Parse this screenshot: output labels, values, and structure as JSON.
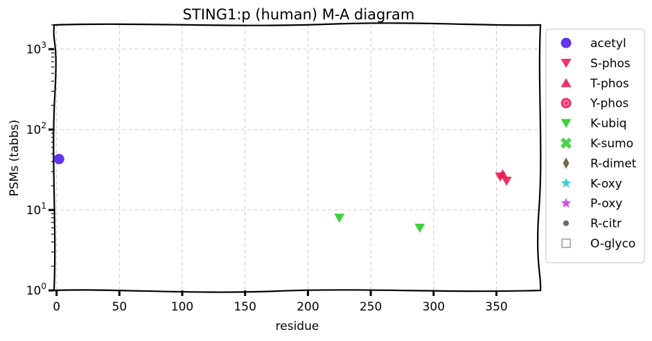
{
  "chart_data": {
    "type": "scatter",
    "title": "STING1:p (human) M-A diagram",
    "xlabel": "residue",
    "ylabel": "PSMs (tabbs)",
    "xlim": [
      -2,
      385
    ],
    "ylim": [
      1,
      2000
    ],
    "yscale": "log",
    "grid": true,
    "legend_position": "right-outside",
    "x_ticks": [
      0,
      50,
      100,
      150,
      200,
      250,
      300,
      350
    ],
    "y_ticks": [
      {
        "value": 1,
        "base": "10",
        "exp": "0"
      },
      {
        "value": 10,
        "base": "10",
        "exp": "1"
      },
      {
        "value": 100,
        "base": "10",
        "exp": "2"
      },
      {
        "value": 1000,
        "base": "10",
        "exp": "3"
      }
    ],
    "series": [
      {
        "name": "acetyl",
        "marker": "circle",
        "color": "#4a1bea",
        "points": [
          [
            2,
            43
          ]
        ]
      },
      {
        "name": "S-phos",
        "marker": "triangle-down",
        "color": "#f0154f",
        "points": [
          [
            353,
            26
          ],
          [
            358,
            23
          ]
        ]
      },
      {
        "name": "T-phos",
        "marker": "triangle-up",
        "color": "#f0154f",
        "points": [
          [
            355,
            28
          ]
        ]
      },
      {
        "name": "Y-phos",
        "marker": "circle-ring",
        "color": "#f0154f",
        "points": []
      },
      {
        "name": "K-ubiq",
        "marker": "triangle-down",
        "color": "#22cc22",
        "points": [
          [
            225,
            8
          ],
          [
            289,
            6
          ]
        ]
      },
      {
        "name": "K-sumo",
        "marker": "x",
        "color": "#33cc33",
        "points": []
      },
      {
        "name": "R-dimet",
        "marker": "diamond",
        "color": "#5e5420",
        "points": []
      },
      {
        "name": "K-oxy",
        "marker": "star",
        "color": "#20cccc",
        "points": []
      },
      {
        "name": "P-oxy",
        "marker": "star",
        "color": "#cc33dd",
        "points": []
      },
      {
        "name": "R-citr",
        "marker": "dot",
        "color": "#555555",
        "points": []
      },
      {
        "name": "O-glyco",
        "marker": "square-open",
        "color": "#888888",
        "points": []
      }
    ]
  }
}
